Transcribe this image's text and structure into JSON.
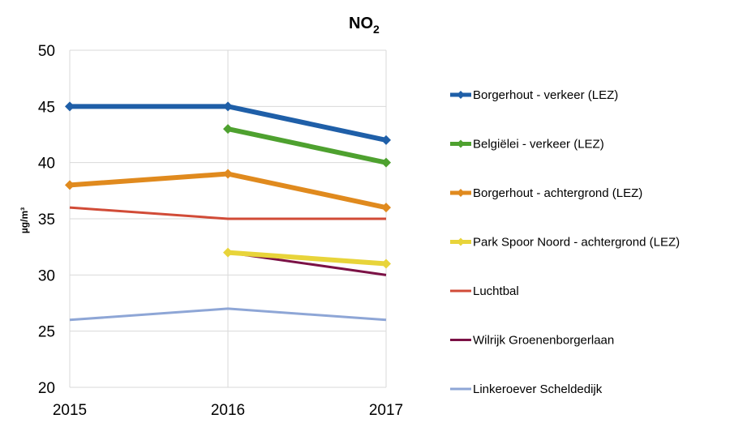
{
  "chart_data": {
    "type": "line",
    "title": "NO2",
    "title_main": "NO",
    "title_sub": "2",
    "xlabel": "",
    "ylabel": "µg/m³",
    "categories": [
      "2015",
      "2016",
      "2017"
    ],
    "ylim": [
      20,
      50
    ],
    "yticks": [
      "20",
      "25",
      "30",
      "35",
      "40",
      "45",
      "50"
    ],
    "legend_position": "right",
    "series": [
      {
        "name": "Borgerhout - verkeer (LEZ)",
        "color": "#1F5FA8",
        "marker": "diamond",
        "values": [
          45,
          45,
          42
        ]
      },
      {
        "name": "Belgiëlei - verkeer (LEZ)",
        "color": "#4EA12F",
        "marker": "diamond",
        "values": [
          null,
          43,
          40
        ]
      },
      {
        "name": "Borgerhout - achtergrond (LEZ)",
        "color": "#E08A1E",
        "marker": "diamond",
        "values": [
          38,
          39,
          36
        ]
      },
      {
        "name": "Park Spoor Noord - achtergrond (LEZ)",
        "color": "#E8D43A",
        "marker": "diamond",
        "values": [
          null,
          32,
          31
        ]
      },
      {
        "name": "Luchtbal",
        "color": "#D14B37",
        "marker": "none",
        "values": [
          36,
          35,
          35
        ]
      },
      {
        "name": "Wilrijk Groenenborgerlaan",
        "color": "#7B1145",
        "marker": "none",
        "values": [
          null,
          32,
          30
        ]
      },
      {
        "name": "Linkeroever Scheldedijk",
        "color": "#8EA6D6",
        "marker": "none",
        "values": [
          26,
          27,
          26
        ]
      }
    ]
  }
}
